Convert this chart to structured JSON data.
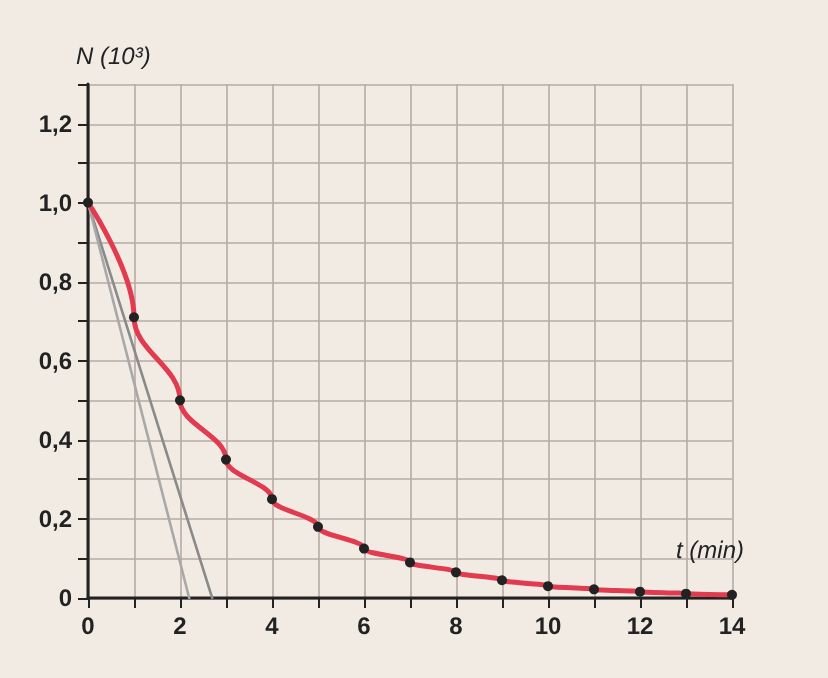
{
  "chart_data": {
    "type": "line",
    "xlabel": "t (min)",
    "ylabel": "N (10³)",
    "x": [
      0,
      1,
      2,
      3,
      4,
      5,
      6,
      7,
      8,
      9,
      10,
      11,
      12,
      13,
      14
    ],
    "series": [
      {
        "color": "#e23a4e",
        "marker": "circle",
        "values": [
          1.0,
          0.71,
          0.5,
          0.35,
          0.25,
          0.18,
          0.125,
          0.09,
          0.065,
          0.045,
          0.03,
          0.022,
          0.016,
          0.011,
          0.008
        ]
      },
      {
        "color": "#8a8a8a",
        "marker": "none",
        "x": [
          0,
          2.7
        ],
        "values": [
          1.0,
          0
        ]
      },
      {
        "color": "#a8a8a8",
        "marker": "none",
        "x": [
          0,
          2.2
        ],
        "values": [
          1.0,
          0
        ]
      }
    ],
    "xlim": [
      0,
      14
    ],
    "ylim": [
      0,
      1.3
    ],
    "xticks": [
      0,
      {
        "value": 1,
        "label": null
      },
      2,
      {
        "value": 3,
        "label": null
      },
      4,
      {
        "value": 5,
        "label": null
      },
      6,
      {
        "value": 7,
        "label": null
      },
      8,
      {
        "value": 9,
        "label": null
      },
      10,
      {
        "value": 11,
        "label": null
      },
      12,
      {
        "value": 13,
        "label": null
      },
      14
    ],
    "yticks": [
      0,
      {
        "value": 0.1,
        "label": null
      },
      {
        "value": 0.2,
        "label": "0,2"
      },
      {
        "value": 0.3,
        "label": null
      },
      {
        "value": 0.4,
        "label": "0,4"
      },
      {
        "value": 0.5,
        "label": null
      },
      {
        "value": 0.6,
        "label": "0,6"
      },
      {
        "value": 0.7,
        "label": null
      },
      {
        "value": 0.8,
        "label": "0,8"
      },
      {
        "value": 0.9,
        "label": null
      },
      {
        "value": 1.0,
        "label": "1,0"
      },
      {
        "value": 1.1,
        "label": null
      },
      {
        "value": 1.2,
        "label": "1,2"
      },
      {
        "value": 1.3,
        "label": null
      }
    ],
    "grid": true
  }
}
